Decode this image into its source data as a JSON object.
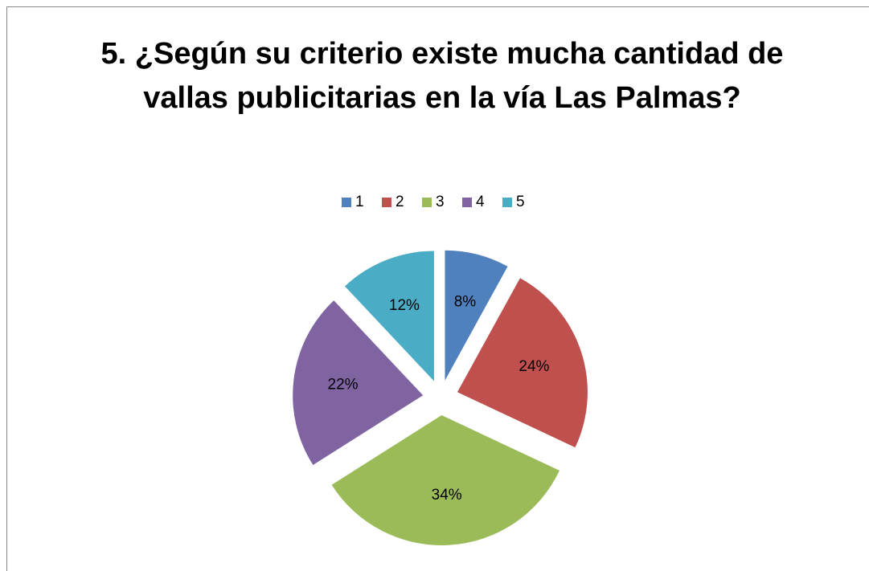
{
  "chart_data": {
    "type": "pie",
    "title": "5. ¿Según su criterio existe mucha cantidad de vallas publicitarias en la vía Las Palmas?",
    "categories": [
      "1",
      "2",
      "3",
      "4",
      "5"
    ],
    "values": [
      8,
      24,
      34,
      22,
      12
    ],
    "value_labels": [
      "8%",
      "24%",
      "34%",
      "22%",
      "12%"
    ],
    "colors": [
      "#4f81bd",
      "#c0504d",
      "#9bbb59",
      "#8064a2",
      "#4bacc6"
    ],
    "legend": "top"
  }
}
